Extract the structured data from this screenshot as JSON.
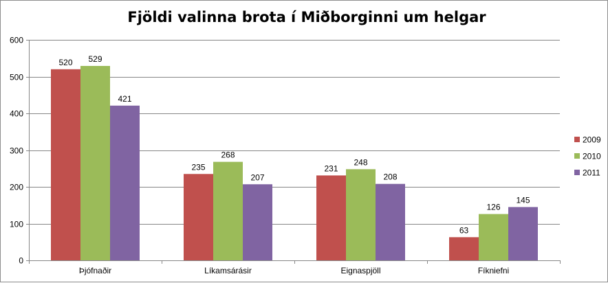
{
  "chart_data": {
    "type": "bar",
    "title": "Fjöldi valinna brota í Miðborginni um helgar",
    "xlabel": "",
    "ylabel": "",
    "categories": [
      "Þjófnaðir",
      "Líkamsárásir",
      "Eignaspjöll",
      "Fíkniefni"
    ],
    "series": [
      {
        "name": "2009",
        "color": "#c0504d",
        "values": [
          520,
          235,
          231,
          63
        ]
      },
      {
        "name": "2010",
        "color": "#9bbb59",
        "values": [
          529,
          268,
          248,
          126
        ]
      },
      {
        "name": "2011",
        "color": "#8064a2",
        "values": [
          421,
          207,
          208,
          145
        ]
      }
    ],
    "ylim": [
      0,
      600
    ],
    "yticks": [
      0,
      100,
      200,
      300,
      400,
      500,
      600
    ],
    "grid": true,
    "legend": "right",
    "data_labels": true
  }
}
